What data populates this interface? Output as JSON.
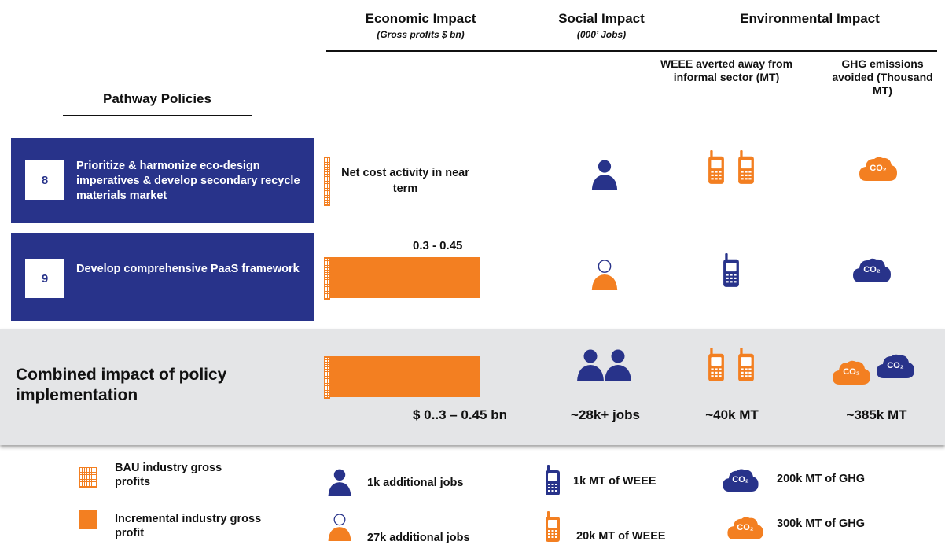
{
  "colors": {
    "navy": "#28338a",
    "orange": "#f37f21",
    "combined_bg": "#e4e5e7"
  },
  "headers": {
    "economic": {
      "title": "Economic Impact",
      "sub": "(Gross profits $ bn)"
    },
    "social": {
      "title": "Social Impact",
      "sub": "(000’ Jobs)"
    },
    "environmental": {
      "title": "Environmental Impact"
    },
    "weee": "WEEE averted away from informal sector (MT)",
    "ghg": "GHG emissions avoided (Thousand MT)",
    "pathway": "Pathway Policies"
  },
  "policies": [
    {
      "number": "8",
      "text": "Prioritize & harmonize eco-design imperatives & develop secondary recycle materials market",
      "economic_note": "Net cost activity in near term",
      "social_icons": [
        "person-icon-navy"
      ],
      "weee_icons": [
        "phone-icon-orange",
        "phone-icon-orange"
      ],
      "ghg_icons": [
        "co2-cloud-icon-orange"
      ]
    },
    {
      "number": "9",
      "text": "Develop comprehensive PaaS framework",
      "economic_value_label": "0.3  - 0.45",
      "social_icons": [
        "person-icon-orange"
      ],
      "weee_icons": [
        "phone-icon-navy"
      ],
      "ghg_icons": [
        "co2-cloud-icon-navy"
      ]
    }
  ],
  "combined": {
    "label": "Combined impact of policy implementation",
    "economic": "$ 0..3 – 0.45 bn",
    "social": "~28k+ jobs",
    "weee": "~40k  MT",
    "ghg": "~385k MT"
  },
  "legend": {
    "bau": "BAU industry gross profits",
    "incremental": "Incremental industry gross profit",
    "jobs_1k": "1k additional jobs",
    "jobs_27k": "27k additional jobs",
    "weee_1k": "1k MT of WEEE",
    "weee_20k": "20k MT of WEEE",
    "ghg_200k": "200k MT of GHG",
    "ghg_300k": "300k MT of GHG"
  },
  "co2_text": "CO₂"
}
